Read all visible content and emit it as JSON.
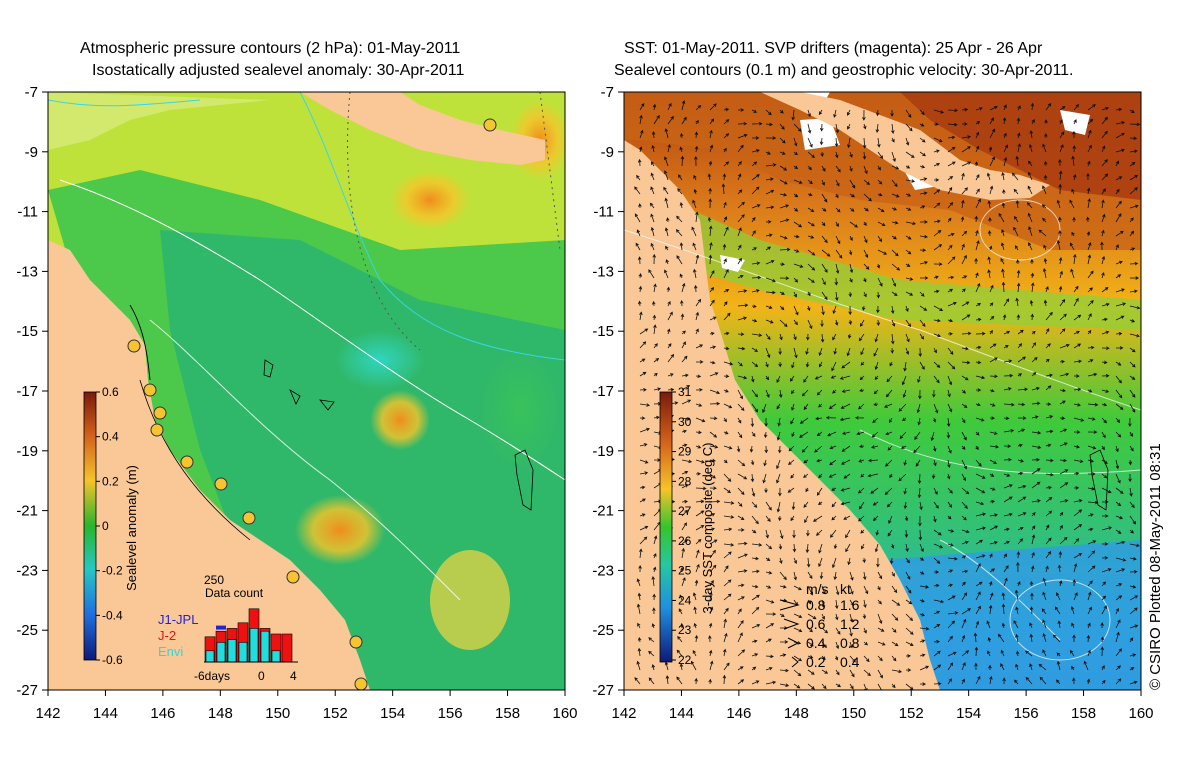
{
  "left_panel": {
    "title_line1": "Atmospheric pressure contours (2 hPa): 01-May-2011",
    "title_line2": "Isostatically adjusted sealevel anomaly: 30-Apr-2011",
    "colorbar": {
      "label": "Sealevel anomaly (m)",
      "ticks": [
        "0.6",
        "0.4",
        "0.2",
        "0",
        "-0.2",
        "-0.4",
        "-0.6"
      ]
    },
    "data_count": {
      "title": "Data count",
      "ymax_label": "250",
      "legend": [
        {
          "name": "J1-JPL",
          "color": "#2222dd"
        },
        {
          "name": "J-2",
          "color": "#ee1111"
        },
        {
          "name": "Envi",
          "color": "#22dddd"
        }
      ],
      "xtick_labels": [
        "-6days",
        "0",
        "4"
      ],
      "bars": [
        {
          "day": -6,
          "j1": 0,
          "j2": 0.45,
          "envi": 0.2
        },
        {
          "day": -5,
          "j1": 0.65,
          "j2": 0.55,
          "envi": 0.35
        },
        {
          "day": -4,
          "j1": 0,
          "j2": 0.6,
          "envi": 0.4
        },
        {
          "day": -3,
          "j1": 0,
          "j2": 0.7,
          "envi": 0.35
        },
        {
          "day": -2,
          "j1": 0,
          "j2": 0.95,
          "envi": 0.6
        },
        {
          "day": -1,
          "j1": 0,
          "j2": 0.6,
          "envi": 0.55
        },
        {
          "day": 0,
          "j1": 0,
          "j2": 0.5,
          "envi": 0.2
        },
        {
          "day": 1,
          "j1": 0,
          "j2": 0.5,
          "envi": 0
        }
      ]
    }
  },
  "right_panel": {
    "title_line1": "SST: 01-May-2011. SVP drifters (magenta): 25 Apr - 26 Apr",
    "title_line2": "Sealevel contours (0.1 m) and geostrophic velocity: 30-Apr-2011.",
    "colorbar": {
      "label": "3-day SST composite (deg C)",
      "ticks": [
        "31",
        "30",
        "29",
        "28",
        "27",
        "26",
        "25",
        "24",
        "23",
        "22"
      ]
    },
    "velocity_legend": {
      "header_ms": "m/s",
      "header_kt": "kt",
      "rows": [
        {
          "ms": "0.8",
          "kt": "1.6"
        },
        {
          "ms": "0.6",
          "kt": "1.2"
        },
        {
          "ms": "0.4",
          "kt": "0.8"
        },
        {
          "ms": "0.2",
          "kt": "0.4"
        }
      ]
    }
  },
  "axes": {
    "lat_labels": [
      "-7",
      "-9",
      "-11",
      "-13",
      "-15",
      "-17",
      "-19",
      "-21",
      "-23",
      "-25",
      "-27"
    ],
    "lon_labels": [
      "142",
      "144",
      "146",
      "148",
      "150",
      "152",
      "154",
      "156",
      "158",
      "160"
    ]
  },
  "credit": "© CSIRO Plotted 08-May-2011 08:31",
  "colors": {
    "land": "#f9c896",
    "ocean_green": "#3cc94b",
    "warm": "#e07b1a"
  }
}
